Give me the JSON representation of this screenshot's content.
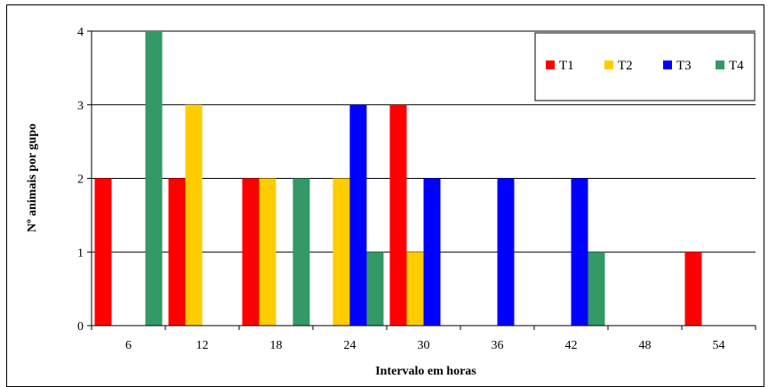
{
  "chart_data": {
    "type": "bar",
    "xlabel": "Intervalo em horas",
    "ylabel": "Nº animais por gupo",
    "categories": [
      "6",
      "12",
      "18",
      "24",
      "30",
      "36",
      "42",
      "48",
      "54"
    ],
    "ylim": [
      0,
      4
    ],
    "yticks": [
      "0",
      "1",
      "2",
      "3",
      "4"
    ],
    "grid": true,
    "legend": "top-right",
    "series": [
      {
        "name": "T1",
        "color": "#ff0000",
        "values": [
          2,
          2,
          2,
          0,
          3,
          0,
          0,
          0,
          1
        ]
      },
      {
        "name": "T2",
        "color": "#ffcc00",
        "values": [
          0,
          3,
          2,
          2,
          1,
          0,
          0,
          0,
          0
        ]
      },
      {
        "name": "T3",
        "color": "#0000ff",
        "values": [
          0,
          0,
          0,
          3,
          2,
          2,
          2,
          0,
          0
        ]
      },
      {
        "name": "T4",
        "color": "#339966",
        "values": [
          4,
          0,
          2,
          1,
          0,
          0,
          1,
          0,
          0
        ]
      }
    ]
  }
}
